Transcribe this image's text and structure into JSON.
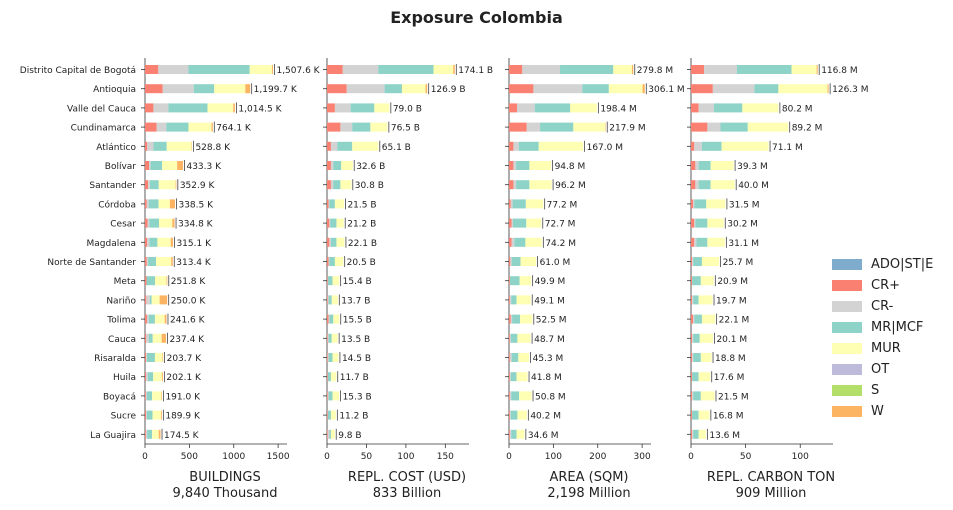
{
  "title": "Exposure Colombia",
  "legend": {
    "items": [
      {
        "label": "ADO|ST|E",
        "color": "#7fabcc"
      },
      {
        "label": "CR+",
        "color": "#fa8072"
      },
      {
        "label": "CR-",
        "color": "#d3d3d3"
      },
      {
        "label": "MR|MCF",
        "color": "#8dd3c7"
      },
      {
        "label": "MUR",
        "color": "#ffffb3"
      },
      {
        "label": "OT",
        "color": "#bebada"
      },
      {
        "label": "S",
        "color": "#b3de69"
      },
      {
        "label": "W",
        "color": "#fdb462"
      }
    ]
  },
  "chart_data": {
    "type": "bar",
    "orientation": "horizontal",
    "stacked": true,
    "title": "Exposure Colombia",
    "categories": [
      "Distrito Capital de Bogotá",
      "Antioquia",
      "Valle del Cauca",
      "Cundinamarca",
      "Atlántico",
      "Bolívar",
      "Santander",
      "Córdoba",
      "Cesar",
      "Magdalena",
      "Norte de Santander",
      "Meta",
      "Nariño",
      "Tolima",
      "Cauca",
      "Risaralda",
      "Huila",
      "Boyacá",
      "Sucre",
      "La Guajira"
    ],
    "series_names": [
      "ADO|ST|E",
      "CR+",
      "CR-",
      "MR|MCF",
      "MUR",
      "OT",
      "S",
      "W"
    ],
    "panels": [
      {
        "xlabel": "BUILDINGS",
        "total": "9,840 Thousand",
        "xlim": [
          0,
          1600
        ],
        "xticks": [
          0,
          500,
          1000,
          1500
        ],
        "labels": [
          "1,507.6 K",
          "1,199.7 K",
          "1,014.5 K",
          "764.1 K",
          "528.8 K",
          "433.3 K",
          "352.9 K",
          "338.5 K",
          "334.8 K",
          "315.1 K",
          "313.4 K",
          "251.8 K",
          "250.0 K",
          "241.6 K",
          "237.4 K",
          "203.7 K",
          "202.1 K",
          "191.0 K",
          "189.9 K",
          "174.5 K"
        ],
        "values": [
          [
            0,
            150,
            340,
            690,
            250,
            0,
            0,
            12
          ],
          [
            0,
            200,
            350,
            230,
            350,
            0,
            0,
            55
          ],
          [
            0,
            95,
            170,
            440,
            290,
            0,
            0,
            18
          ],
          [
            0,
            130,
            110,
            250,
            260,
            0,
            0,
            14
          ],
          [
            0,
            25,
            70,
            150,
            280,
            0,
            0,
            4
          ],
          [
            0,
            45,
            18,
            130,
            170,
            0,
            0,
            65
          ],
          [
            0,
            35,
            20,
            100,
            190,
            0,
            0,
            8
          ],
          [
            0,
            20,
            22,
            110,
            128,
            0,
            0,
            58
          ],
          [
            0,
            30,
            18,
            110,
            150,
            0,
            0,
            25
          ],
          [
            0,
            25,
            25,
            90,
            150,
            0,
            0,
            25
          ],
          [
            0,
            20,
            15,
            90,
            170,
            0,
            0,
            18
          ],
          [
            0,
            18,
            0,
            95,
            130,
            0,
            0,
            8
          ],
          [
            0,
            15,
            40,
            20,
            90,
            0,
            0,
            85
          ],
          [
            0,
            22,
            20,
            70,
            110,
            0,
            0,
            20
          ],
          [
            0,
            14,
            28,
            45,
            100,
            0,
            0,
            50
          ],
          [
            0,
            12,
            10,
            90,
            85,
            0,
            0,
            7
          ],
          [
            0,
            12,
            20,
            60,
            100,
            0,
            0,
            10
          ],
          [
            0,
            10,
            10,
            60,
            105,
            0,
            0,
            6
          ],
          [
            0,
            12,
            8,
            65,
            95,
            0,
            0,
            10
          ],
          [
            0,
            10,
            15,
            55,
            75,
            0,
            0,
            20
          ]
        ]
      },
      {
        "xlabel": "REPL. COST (USD)",
        "total": "833 Billion",
        "xlim": [
          0,
          180
        ],
        "xticks": [
          0,
          50,
          100,
          150
        ],
        "labels": [
          "174.1 B",
          "126.9 B",
          "79.0 B",
          "76.5 B",
          "65.1 B",
          "32.6 B",
          "30.8 B",
          "21.5 B",
          "21.2 B",
          "22.1 B",
          "20.5 B",
          "15.4 B",
          "13.7 B",
          "15.5 B",
          "13.5 B",
          "14.5 B",
          "11.7 B",
          "15.3 B",
          "11.2 B",
          "9.8 B"
        ],
        "values": [
          [
            0,
            20,
            45,
            70,
            25,
            0,
            0,
            2
          ],
          [
            0,
            25,
            48,
            22,
            30,
            0,
            0,
            2
          ],
          [
            0,
            10,
            20,
            30,
            19,
            0,
            0,
            0
          ],
          [
            0,
            17,
            15,
            23,
            21.5,
            0,
            0,
            0
          ],
          [
            0,
            5,
            8,
            19,
            33,
            0,
            0,
            0
          ],
          [
            0,
            5,
            3,
            10,
            14.6,
            0,
            0,
            0
          ],
          [
            0,
            5,
            3,
            9,
            13.8,
            0,
            0,
            0
          ],
          [
            0,
            2,
            1,
            7,
            11.5,
            0,
            0,
            0
          ],
          [
            0,
            3,
            1,
            8,
            9.2,
            0,
            0,
            0
          ],
          [
            0,
            3,
            2,
            7,
            10.1,
            0,
            0,
            0
          ],
          [
            0,
            2,
            1,
            7,
            10.5,
            0,
            0,
            0
          ],
          [
            0,
            1,
            0,
            6,
            8.4,
            0,
            0,
            0
          ],
          [
            0,
            1,
            1,
            4,
            7.7,
            0,
            0,
            0
          ],
          [
            0,
            2,
            1,
            5,
            7.5,
            0,
            0,
            0
          ],
          [
            0,
            1,
            1,
            4,
            7.5,
            0,
            0,
            0
          ],
          [
            0,
            1,
            1,
            5,
            7.5,
            0,
            0,
            0
          ],
          [
            0,
            1,
            0,
            4,
            6.7,
            0,
            0,
            0
          ],
          [
            0,
            1,
            1,
            5,
            8.3,
            0,
            0,
            0
          ],
          [
            0,
            1,
            0,
            4,
            6.2,
            0,
            0,
            0
          ],
          [
            0,
            1,
            2,
            2,
            4.8,
            0,
            0,
            0
          ]
        ]
      },
      {
        "xlabel": "AREA (SQM)",
        "total": "2,198 Million",
        "xlim": [
          0,
          320
        ],
        "xticks": [
          0,
          100,
          200,
          300
        ],
        "labels": [
          "279.8 M",
          "306.1 M",
          "198.4 M",
          "217.9 M",
          "167.0 M",
          "94.8 M",
          "96.2 M",
          "77.2 M",
          "72.7 M",
          "74.2 M",
          "61.0 M",
          "49.9 M",
          "49.1 M",
          "52.5 M",
          "48.7 M",
          "45.3 M",
          "41.8 M",
          "50.8 M",
          "40.2 M",
          "34.6 M"
        ],
        "values": [
          [
            0,
            30,
            85,
            120,
            42,
            0,
            0,
            3
          ],
          [
            0,
            55,
            110,
            60,
            76,
            0,
            0,
            5
          ],
          [
            0,
            18,
            40,
            80,
            60,
            0,
            0,
            0
          ],
          [
            0,
            40,
            30,
            75,
            72,
            0,
            0,
            1
          ],
          [
            0,
            10,
            12,
            45,
            100,
            0,
            0,
            0
          ],
          [
            0,
            10,
            6,
            30,
            48.8,
            0,
            0,
            0
          ],
          [
            0,
            10,
            6,
            30,
            50,
            0,
            0,
            0
          ],
          [
            0,
            4,
            4,
            30,
            39,
            0,
            0,
            0
          ],
          [
            0,
            6,
            3,
            30,
            33.7,
            0,
            0,
            0
          ],
          [
            0,
            6,
            6,
            25,
            37,
            0,
            0,
            0
          ],
          [
            0,
            3,
            3,
            20,
            35,
            0,
            0,
            0
          ],
          [
            0,
            2,
            0,
            22,
            25.9,
            0,
            0,
            0
          ],
          [
            0,
            2,
            3,
            12,
            32,
            0,
            0,
            0
          ],
          [
            0,
            4,
            3,
            18,
            27.5,
            0,
            0,
            0
          ],
          [
            0,
            2,
            2,
            15,
            29.7,
            0,
            0,
            0
          ],
          [
            0,
            2,
            4,
            15,
            24.3,
            0,
            0,
            0
          ],
          [
            0,
            2,
            2,
            13,
            24.8,
            0,
            0,
            0
          ],
          [
            0,
            2,
            3,
            18,
            27.8,
            0,
            0,
            0
          ],
          [
            0,
            2,
            2,
            15,
            21.2,
            0,
            0,
            0
          ],
          [
            0,
            2,
            3,
            12,
            17.6,
            0,
            0,
            0
          ]
        ]
      },
      {
        "xlabel": "REPL. CARBON TON",
        "total": "909 Million",
        "xlim": [
          0,
          130
        ],
        "xticks": [
          0,
          50,
          100
        ],
        "labels": [
          "116.8 M",
          "126.3 M",
          "80.2 M",
          "89.2 M",
          "71.1 M",
          "39.3 M",
          "40.0 M",
          "31.5 M",
          "30.2 M",
          "31.1 M",
          "25.7 M",
          "20.9 M",
          "19.7 M",
          "22.1 M",
          "20.1 M",
          "18.8 M",
          "17.6 M",
          "21.5 M",
          "16.8 M",
          "13.6 M"
        ],
        "values": [
          [
            0,
            12,
            30,
            50,
            23,
            0,
            0,
            1
          ],
          [
            0,
            20,
            38,
            22,
            45,
            0,
            0,
            1
          ],
          [
            0,
            7,
            14,
            26,
            33,
            0,
            0,
            0
          ],
          [
            0,
            15,
            12,
            25,
            37,
            0,
            0,
            0
          ],
          [
            0,
            3,
            7,
            18,
            43,
            0,
            0,
            0
          ],
          [
            0,
            4,
            3,
            11,
            21,
            0,
            0,
            0
          ],
          [
            0,
            4,
            3,
            11,
            22,
            0,
            0,
            0
          ],
          [
            0,
            2,
            1,
            11,
            17.5,
            0,
            0,
            0
          ],
          [
            0,
            3,
            1,
            11,
            15,
            0,
            0,
            0
          ],
          [
            0,
            3,
            2,
            10,
            16,
            0,
            0,
            0
          ],
          [
            0,
            1,
            1,
            8,
            15.7,
            0,
            0,
            0
          ],
          [
            0,
            1,
            0,
            8,
            11.9,
            0,
            0,
            0
          ],
          [
            0,
            1,
            1,
            5,
            12.7,
            0,
            0,
            0
          ],
          [
            0,
            2,
            1,
            7,
            12.1,
            0,
            0,
            0
          ],
          [
            0,
            1,
            1,
            6,
            12.1,
            0,
            0,
            0
          ],
          [
            0,
            1,
            1,
            7,
            9.8,
            0,
            0,
            0
          ],
          [
            0,
            1,
            0,
            6,
            10.6,
            0,
            0,
            0
          ],
          [
            0,
            1,
            1,
            7,
            12.5,
            0,
            0,
            0
          ],
          [
            0,
            1,
            0,
            6,
            9.8,
            0,
            0,
            0
          ],
          [
            0,
            1,
            1,
            5,
            6.6,
            0,
            0,
            0
          ]
        ]
      }
    ]
  }
}
